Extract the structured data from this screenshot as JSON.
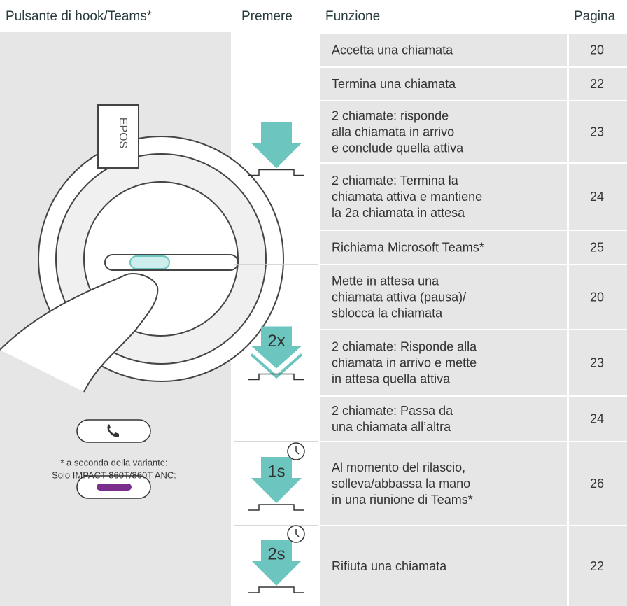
{
  "header": {
    "columns": [
      "Pulsante di hook/Teams*",
      "Premere",
      "Funzione",
      "Pagina"
    ]
  },
  "illustration": {
    "logo": "EPOS",
    "note": [
      "* a seconda della variante:",
      "Solo IMPACT 860T/860T ANC:"
    ]
  },
  "press_groups": [
    {
      "label": null
    },
    {
      "label": "2x"
    },
    {
      "label": "1s"
    },
    {
      "label": "2s"
    }
  ],
  "rows": [
    {
      "function": [
        "Accetta una chiamata"
      ],
      "page": "20"
    },
    {
      "function": [
        "Termina una chiamata"
      ],
      "page": "22"
    },
    {
      "function": [
        "2 chiamate: risponde",
        "alla chiamata in arrivo",
        "e conclude quella attiva"
      ],
      "page": "23"
    },
    {
      "function": [
        "2 chiamate: Termina la",
        "chiamata attiva e mantiene",
        "la 2a chiamata in attesa"
      ],
      "page": "24"
    },
    {
      "function": [
        "Richiama Microsoft Teams*"
      ],
      "page": "25"
    },
    {
      "function": [
        "Mette in attesa una",
        "chiamata attiva (pausa)/",
        "sblocca la chiamata"
      ],
      "page": "20"
    },
    {
      "function": [
        "2 chiamate: Risponde alla",
        "chiamata in arrivo e mette",
        "in attesa quella attiva"
      ],
      "page": "23"
    },
    {
      "function": [
        "2 chiamate: Passa da",
        "una chiamata all’altra"
      ],
      "page": "24"
    },
    {
      "function": [
        "Al momento del rilascio,",
        "solleva/abbassa la mano",
        "in una riunione di Teams*"
      ],
      "page": "26"
    },
    {
      "function": [
        "Rifiuta una chiamata"
      ],
      "page": "22"
    }
  ]
}
